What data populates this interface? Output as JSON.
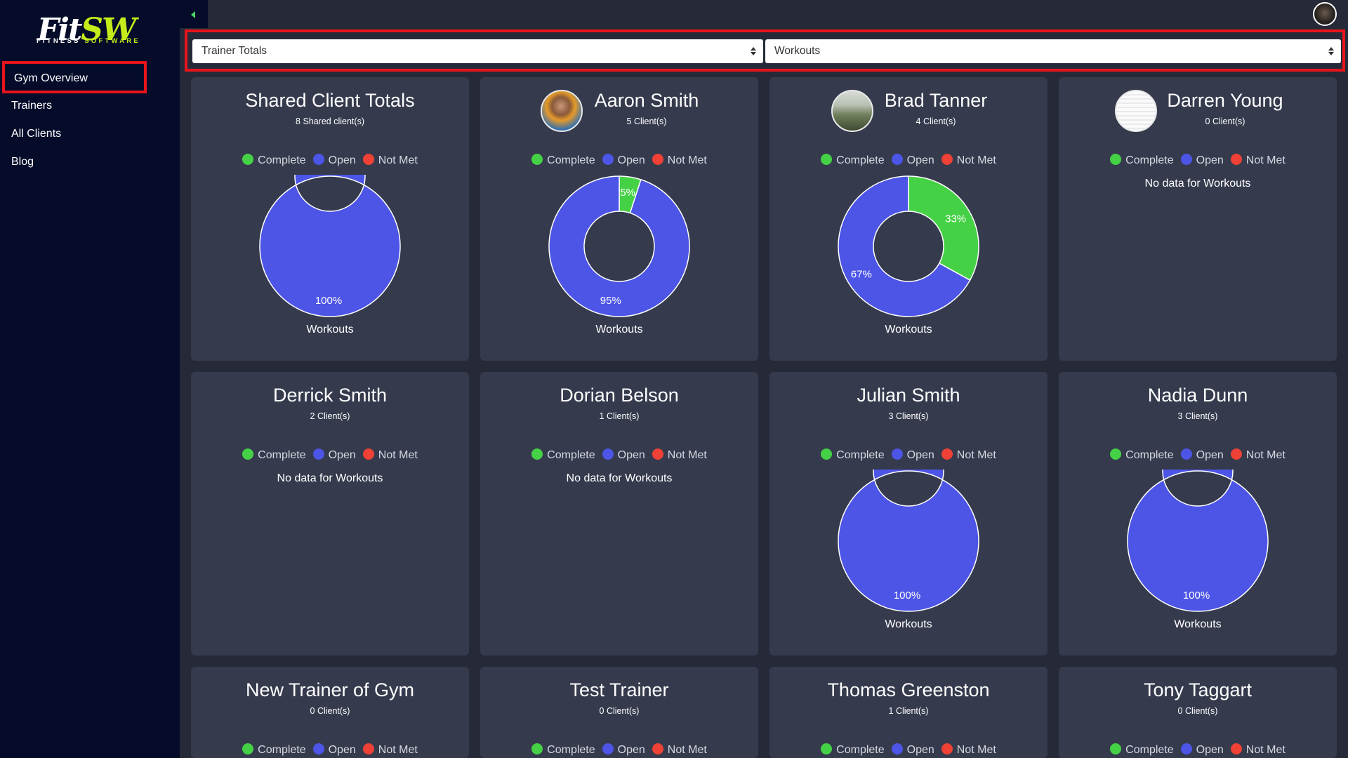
{
  "sidebar": {
    "logo": {
      "main": "Fit",
      "accent": "SW",
      "sub_a": "FITNESS ",
      "sub_b": "SOFTWARE"
    },
    "items": [
      {
        "label": "Gym Overview",
        "active": true
      },
      {
        "label": "Trainers"
      },
      {
        "label": "All Clients"
      },
      {
        "label": "Blog"
      }
    ]
  },
  "filters": {
    "view": "Trainer Totals",
    "metric": "Workouts"
  },
  "legend": {
    "complete": "Complete",
    "open": "Open",
    "not_met": "Not Met"
  },
  "colors": {
    "complete": "#45d145",
    "open": "#4c55e6",
    "not_met": "#ef4136"
  },
  "cards": [
    {
      "title": "Shared Client Totals",
      "subtitle": "8 Shared client(s)",
      "has_chart": true,
      "caption": "Workouts"
    },
    {
      "title": "Aaron Smith",
      "subtitle": "5 Client(s)",
      "has_chart": true,
      "caption": "Workouts"
    },
    {
      "title": "Brad Tanner",
      "subtitle": "4 Client(s)",
      "has_chart": true,
      "caption": "Workouts"
    },
    {
      "title": "Darren Young",
      "subtitle": "0 Client(s)",
      "has_chart": false,
      "no_data": "No data for Workouts"
    },
    {
      "title": "Derrick Smith",
      "subtitle": "2 Client(s)",
      "has_chart": false,
      "no_data": "No data for Workouts"
    },
    {
      "title": "Dorian Belson",
      "subtitle": "1 Client(s)",
      "has_chart": false,
      "no_data": "No data for Workouts"
    },
    {
      "title": "Julian Smith",
      "subtitle": "3 Client(s)",
      "has_chart": true,
      "caption": "Workouts"
    },
    {
      "title": "Nadia Dunn",
      "subtitle": "3 Client(s)",
      "has_chart": true,
      "caption": "Workouts"
    },
    {
      "title": "New Trainer of Gym",
      "subtitle": "0 Client(s)"
    },
    {
      "title": "Test Trainer",
      "subtitle": "0 Client(s)"
    },
    {
      "title": "Thomas Greenston",
      "subtitle": "1 Client(s)"
    },
    {
      "title": "Tony Taggart",
      "subtitle": "0 Client(s)"
    }
  ],
  "chart_data": [
    {
      "type": "pie",
      "variant": "donut",
      "title": "Shared Client Totals",
      "caption": "Workouts",
      "categories": [
        "Complete",
        "Open",
        "Not Met"
      ],
      "values": [
        0,
        100,
        0
      ],
      "labels": [
        "",
        "100%",
        ""
      ]
    },
    {
      "type": "pie",
      "variant": "donut",
      "title": "Aaron Smith",
      "caption": "Workouts",
      "categories": [
        "Complete",
        "Open",
        "Not Met"
      ],
      "values": [
        5,
        95,
        0
      ],
      "labels": [
        "5%",
        "95%",
        ""
      ]
    },
    {
      "type": "pie",
      "variant": "donut",
      "title": "Brad Tanner",
      "caption": "Workouts",
      "categories": [
        "Complete",
        "Open",
        "Not Met"
      ],
      "values": [
        33,
        67,
        0
      ],
      "labels": [
        "33%",
        "67%",
        ""
      ]
    },
    {
      "type": "pie",
      "variant": "donut",
      "title": "Julian Smith",
      "caption": "Workouts",
      "categories": [
        "Complete",
        "Open",
        "Not Met"
      ],
      "values": [
        0,
        100,
        0
      ],
      "labels": [
        "",
        "100%",
        ""
      ]
    },
    {
      "type": "pie",
      "variant": "donut",
      "title": "Nadia Dunn",
      "caption": "Workouts",
      "categories": [
        "Complete",
        "Open",
        "Not Met"
      ],
      "values": [
        0,
        100,
        0
      ],
      "labels": [
        "",
        "100%",
        ""
      ]
    }
  ]
}
